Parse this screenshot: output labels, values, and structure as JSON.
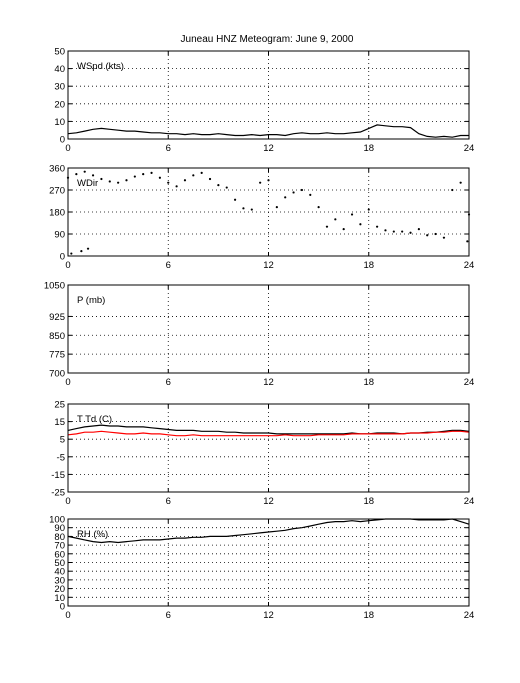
{
  "chart_data": {
    "title": "Juneau HNZ Meteogram:       June  9, 2000",
    "panels": [
      {
        "id": "wspd",
        "type": "line",
        "label": "WSpd (kts)",
        "ylim": [
          0,
          50
        ],
        "yticks": [
          0,
          10,
          20,
          30,
          40,
          50
        ],
        "xlim": [
          0,
          24
        ],
        "xticks": [
          0,
          6,
          12,
          18,
          24
        ],
        "grid": true,
        "series": [
          {
            "color": "#000000",
            "style": "line",
            "x": [
              0,
              0.5,
              1,
              1.5,
              2,
              2.5,
              3,
              3.5,
              4,
              4.5,
              5,
              5.5,
              6,
              6.5,
              7,
              7.5,
              8,
              8.5,
              9,
              9.5,
              10,
              10.5,
              11,
              11.5,
              12,
              12.5,
              13,
              13.5,
              14,
              14.5,
              15,
              15.5,
              16,
              16.5,
              17,
              17.5,
              18,
              18.5,
              19,
              19.5,
              20,
              20.5,
              21,
              21.5,
              22,
              22.5,
              23,
              23.5,
              24
            ],
            "y": [
              3,
              3.5,
              4.5,
              5.5,
              6,
              5.5,
              5,
              4.5,
              4.5,
              4,
              3.5,
              3.5,
              3,
              3,
              2.5,
              3,
              2.5,
              2.5,
              3,
              2.5,
              2,
              2,
              2.5,
              2,
              2.5,
              2.5,
              2,
              3,
              3.5,
              3,
              3,
              3.5,
              3,
              3,
              3.5,
              4,
              6,
              8,
              7.5,
              7,
              7,
              6.5,
              3,
              1.5,
              1,
              1.5,
              1,
              2,
              2
            ]
          }
        ]
      },
      {
        "id": "wdir",
        "type": "scatter",
        "label": "WDir",
        "ylim": [
          0,
          360
        ],
        "yticks": [
          0,
          90,
          180,
          270,
          360
        ],
        "xlim": [
          0,
          24
        ],
        "xticks": [
          0,
          6,
          12,
          18,
          24
        ],
        "grid": true,
        "series": [
          {
            "color": "#000000",
            "style": "dots",
            "x": [
              0,
              0.5,
              1,
              1.5,
              2,
              2.5,
              3,
              3.5,
              4,
              4.5,
              5,
              5.5,
              6,
              6.5,
              7,
              7.5,
              8,
              8.5,
              9,
              9.5,
              10,
              10.5,
              11,
              11.5,
              12,
              12.5,
              13,
              13.5,
              14,
              14.5,
              15,
              15.5,
              16,
              16.5,
              17,
              17.5,
              18,
              18.5,
              19,
              19.5,
              20,
              20.5,
              21,
              21.5,
              22,
              22.5,
              23,
              23.5,
              24,
              0.8,
              1.2,
              0.2,
              23.9
            ],
            "y": [
              320,
              335,
              345,
              330,
              315,
              305,
              300,
              310,
              325,
              335,
              340,
              320,
              300,
              285,
              310,
              330,
              340,
              315,
              290,
              280,
              230,
              195,
              190,
              300,
              310,
              200,
              240,
              260,
              270,
              250,
              200,
              120,
              150,
              110,
              170,
              130,
              190,
              120,
              105,
              100,
              100,
              95,
              110,
              85,
              90,
              75,
              270,
              300,
              170,
              20,
              30,
              10,
              60
            ]
          }
        ]
      },
      {
        "id": "pres",
        "type": "line",
        "label": "P (mb)",
        "ylim": [
          700,
          1050
        ],
        "yticks": [
          700,
          775,
          850,
          925,
          1050
        ],
        "xlim": [
          0,
          24
        ],
        "xticks": [
          0,
          6,
          12,
          18,
          24
        ],
        "grid": true,
        "series": []
      },
      {
        "id": "ttd",
        "type": "line",
        "label": "T Td (C)",
        "ylim": [
          -25,
          25
        ],
        "yticks": [
          -25,
          -15,
          -5,
          5,
          15,
          25
        ],
        "xlim": [
          0,
          24
        ],
        "xticks": [
          0,
          6,
          12,
          18,
          24
        ],
        "grid": true,
        "series": [
          {
            "color": "#000000",
            "style": "line",
            "x": [
              0,
              0.5,
              1,
              1.5,
              2,
              2.5,
              3,
              3.5,
              4,
              4.5,
              5,
              5.5,
              6,
              6.5,
              7,
              7.5,
              8,
              8.5,
              9,
              9.5,
              10,
              10.5,
              11,
              11.5,
              12,
              12.5,
              13,
              13.5,
              14,
              14.5,
              15,
              15.5,
              16,
              16.5,
              17,
              17.5,
              18,
              18.5,
              19,
              19.5,
              20,
              20.5,
              21,
              21.5,
              22,
              22.5,
              23,
              23.5,
              24
            ],
            "y": [
              10,
              11,
              12,
              12.5,
              13,
              12.5,
              12.5,
              12,
              12,
              12,
              11.5,
              11,
              10.5,
              10,
              10,
              10,
              9.5,
              9.5,
              9.5,
              9,
              9,
              8.5,
              8.5,
              8.5,
              8.5,
              8,
              8,
              8,
              8,
              8,
              8,
              8,
              8,
              8,
              8.5,
              8,
              8,
              8.5,
              8.5,
              8.5,
              8,
              8.5,
              8.5,
              9,
              9,
              9.5,
              10,
              10,
              9.5
            ]
          },
          {
            "color": "#ff0000",
            "style": "line",
            "x": [
              0,
              0.5,
              1,
              1.5,
              2,
              2.5,
              3,
              3.5,
              4,
              4.5,
              5,
              5.5,
              6,
              6.5,
              7,
              7.5,
              8,
              8.5,
              9,
              9.5,
              10,
              10.5,
              11,
              11.5,
              12,
              12.5,
              13,
              13.5,
              14,
              14.5,
              15,
              15.5,
              16,
              16.5,
              17,
              17.5,
              18,
              18.5,
              19,
              19.5,
              20,
              20.5,
              21,
              21.5,
              22,
              22.5,
              23,
              23.5,
              24
            ],
            "y": [
              7.5,
              8,
              9,
              9,
              9.5,
              9,
              8.5,
              8,
              8,
              8.5,
              8,
              8,
              7.5,
              7,
              7,
              7.5,
              7,
              7,
              7,
              7,
              7,
              7,
              7,
              7,
              7,
              7,
              7.5,
              7,
              7,
              7,
              7.5,
              7.5,
              7.5,
              7.5,
              8,
              8,
              8,
              8,
              8,
              8,
              8,
              8.5,
              8.5,
              8.5,
              9,
              9,
              9.5,
              9.5,
              9
            ]
          }
        ]
      },
      {
        "id": "rh",
        "type": "line",
        "label": "RH (%)",
        "ylim": [
          0,
          100
        ],
        "yticks": [
          0,
          10,
          20,
          30,
          40,
          50,
          60,
          70,
          80,
          90,
          100
        ],
        "xlim": [
          0,
          24
        ],
        "xticks": [
          0,
          6,
          12,
          18,
          24
        ],
        "grid": true,
        "series": [
          {
            "color": "#000000",
            "style": "line",
            "x": [
              0,
              0.5,
              1,
              1.5,
              2,
              2.5,
              3,
              3.5,
              4,
              4.5,
              5,
              5.5,
              6,
              6.5,
              7,
              7.5,
              8,
              8.5,
              9,
              9.5,
              10,
              10.5,
              11,
              11.5,
              12,
              12.5,
              13,
              13.5,
              14,
              14.5,
              15,
              15.5,
              16,
              16.5,
              17,
              17.5,
              18,
              18.5,
              19,
              19.5,
              20,
              20.5,
              21,
              21.5,
              22,
              22.5,
              23,
              23.5,
              24
            ],
            "y": [
              80,
              78,
              76,
              74,
              73,
              74,
              73,
              74,
              75,
              76,
              76,
              76,
              77,
              78,
              78,
              79,
              79,
              80,
              80,
              80,
              81,
              82,
              83,
              84,
              85,
              86,
              87,
              89,
              90,
              92,
              94,
              96,
              97,
              97,
              98,
              97,
              98,
              99,
              100,
              100,
              100,
              100,
              99,
              99,
              99,
              99,
              100,
              97,
              94
            ]
          }
        ]
      }
    ]
  }
}
